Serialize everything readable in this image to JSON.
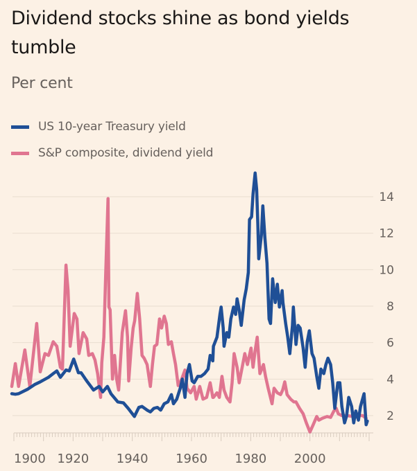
{
  "chart_data": {
    "type": "line",
    "title": "Dividend stocks shine as bond yields tumble",
    "subtitle": "Per cent",
    "xlabel": "",
    "ylabel": "Per cent",
    "xlim": [
      1900,
      2020
    ],
    "ylim": [
      1,
      16
    ],
    "y_ticks": [
      2,
      4,
      6,
      8,
      10,
      12,
      14
    ],
    "y_tick_labels": [
      "2",
      "4",
      "6",
      "8",
      "10",
      "12",
      "14"
    ],
    "x_ticks": [
      1900,
      1920,
      1940,
      1960,
      1980,
      2000
    ],
    "x_tick_labels": [
      "1900",
      "1920",
      "1940",
      "1960",
      "1980",
      "2000"
    ],
    "grid": true,
    "y_axis_side": "right",
    "legend_position": "top-left",
    "series": [
      {
        "name": "US 10-year Treasury yield",
        "color": "#1f4f96",
        "x": [
          1899.3,
          1900.5,
          1901.6,
          1904.7,
          1907,
          1908.9,
          1911.7,
          1913.3,
          1914.5,
          1915.7,
          1917.6,
          1918.7,
          1920.2,
          1921.8,
          1922.7,
          1924.6,
          1926.9,
          1928.8,
          1930,
          1931.6,
          1932.8,
          1935.1,
          1937,
          1938.6,
          1940.7,
          1942.2,
          1943.3,
          1945,
          1946.1,
          1947.3,
          1948.5,
          1949.6,
          1950.8,
          1952,
          1953.2,
          1953.9,
          1955,
          1956.2,
          1956.9,
          1957.8,
          1958.5,
          1959.3,
          1960.2,
          1960.9,
          1962.1,
          1963.2,
          1964.4,
          1965.6,
          1966.3,
          1967.2,
          1967.4,
          1968.6,
          1969.6,
          1970,
          1970.7,
          1971,
          1971.9,
          1972.6,
          1973.3,
          1974.2,
          1974.9,
          1975.4,
          1976.1,
          1976.8,
          1977.8,
          1978.5,
          1979.2,
          1979.6,
          1980.3,
          1980.8,
          1981.5,
          1982,
          1982.4,
          1982.7,
          1983.6,
          1984.1,
          1984.8,
          1985.5,
          1986.2,
          1986.7,
          1987.4,
          1988.3,
          1989,
          1989.7,
          1990.6,
          1990.9,
          1991.8,
          1992.5,
          1993.2,
          1994.1,
          1994.4,
          1995.3,
          1996,
          1996.7,
          1997.7,
          1998.4,
          1999.1,
          1999.8,
          2000.7,
          2001.4,
          2002.3,
          2003,
          2003.7,
          2004.7,
          2005.4,
          2006.1,
          2007,
          2007.7,
          2008.4,
          2009.4,
          2010.1,
          2010.8,
          2011.7,
          2012.4,
          2013.1,
          2014.1,
          2014.8,
          2015.5,
          2016.4,
          2017.1,
          2018.3,
          2019,
          2019.4
        ],
        "values": [
          3.2,
          3.17,
          3.2,
          3.45,
          3.7,
          3.85,
          4.1,
          4.3,
          4.45,
          4.1,
          4.5,
          4.45,
          5.1,
          4.35,
          4.35,
          3.9,
          3.4,
          3.6,
          3.3,
          3.6,
          3.2,
          2.75,
          2.7,
          2.4,
          1.95,
          2.45,
          2.5,
          2.3,
          2.2,
          2.4,
          2.45,
          2.3,
          2.65,
          2.75,
          3.15,
          2.65,
          2.9,
          3.5,
          4.0,
          3.0,
          4.3,
          4.8,
          3.9,
          3.8,
          4.15,
          4.15,
          4.3,
          4.55,
          5.3,
          5.0,
          5.8,
          6.3,
          7.55,
          7.95,
          6.8,
          5.8,
          6.55,
          6.3,
          7.3,
          7.95,
          7.55,
          8.4,
          7.8,
          6.95,
          8.35,
          8.95,
          9.85,
          12.75,
          12.9,
          14.15,
          15.3,
          14.4,
          12.5,
          10.6,
          11.9,
          13.5,
          11.75,
          10.35,
          7.3,
          7.05,
          9.5,
          8.2,
          9.2,
          7.95,
          8.85,
          8.2,
          7.05,
          6.3,
          5.4,
          6.95,
          7.95,
          5.9,
          6.95,
          6.8,
          5.7,
          4.65,
          6.05,
          6.65,
          5.4,
          5.15,
          4.15,
          3.5,
          4.55,
          4.3,
          4.8,
          5.15,
          4.8,
          3.8,
          2.4,
          3.8,
          3.8,
          2.5,
          1.6,
          2.0,
          3.0,
          2.5,
          1.6,
          2.25,
          1.75,
          2.5,
          3.2,
          1.5,
          1.7
        ]
      },
      {
        "name": "S&P composite, dividend yield",
        "color": "#e07590",
        "x": [
          1899.3,
          1900.5,
          1901.6,
          1903.7,
          1905.4,
          1907.7,
          1908.9,
          1910.5,
          1911.7,
          1913.3,
          1914.5,
          1915.7,
          1916.4,
          1917.6,
          1918.3,
          1919,
          1920.4,
          1921.3,
          1922,
          1923.4,
          1924.6,
          1925.3,
          1926.5,
          1927.4,
          1928.3,
          1929.3,
          1929.7,
          1930.4,
          1931,
          1931.8,
          1932.1,
          1932.5,
          1933.3,
          1934,
          1934.7,
          1935.4,
          1936.6,
          1937.7,
          1938.4,
          1938.8,
          1939.6,
          1940.3,
          1940.8,
          1941.7,
          1942.5,
          1943.3,
          1944,
          1945,
          1946.1,
          1946.8,
          1947.5,
          1948.3,
          1949.2,
          1949.9,
          1950.8,
          1951.5,
          1952.2,
          1953.2,
          1953.9,
          1954.6,
          1955.5,
          1956.7,
          1957.8,
          1958.5,
          1959.7,
          1960.9,
          1961.6,
          1962.8,
          1963.9,
          1965.1,
          1966.3,
          1967.2,
          1967.4,
          1968.6,
          1969.4,
          1970.3,
          1971,
          1971.9,
          1973,
          1973.7,
          1974.4,
          1975.4,
          1976.1,
          1977.3,
          1978,
          1978.9,
          1980.1,
          1980.8,
          1981.5,
          1982.2,
          1983.1,
          1984.3,
          1985,
          1985.9,
          1987.2,
          1987.9,
          1989,
          1990.1,
          1990.8,
          1991.5,
          1992.3,
          1993.5,
          1994.6,
          1995.3,
          1996.5,
          1997.7,
          1998.8,
          2000,
          2001.1,
          2002.3,
          2003,
          2004.2,
          2005.8,
          2007,
          2008.1,
          2008.9,
          2009.6,
          2010.8,
          2012.4,
          2014.8,
          2016.4,
          2017.8,
          2019
        ],
        "values": [
          3.6,
          4.85,
          3.6,
          5.6,
          3.6,
          7.05,
          4.4,
          5.4,
          5.3,
          6.05,
          5.8,
          4.65,
          4.55,
          10.25,
          8.85,
          5.8,
          7.6,
          7.3,
          5.4,
          6.55,
          6.2,
          5.3,
          5.4,
          5.05,
          4.3,
          3.0,
          4.9,
          6.3,
          9.7,
          13.9,
          7.95,
          7.8,
          4.0,
          5.3,
          4.0,
          3.4,
          6.55,
          7.75,
          6.3,
          3.9,
          5.7,
          6.8,
          7.2,
          8.7,
          7.3,
          5.3,
          5.15,
          4.8,
          3.6,
          4.8,
          5.8,
          5.9,
          7.3,
          6.8,
          7.45,
          7.05,
          5.9,
          6.05,
          5.4,
          4.8,
          3.65,
          4.0,
          4.5,
          3.5,
          3.25,
          3.6,
          2.9,
          3.6,
          2.9,
          3.0,
          3.8,
          3.0,
          3.0,
          3.25,
          3.0,
          4.15,
          3.4,
          3.0,
          2.75,
          3.8,
          5.4,
          4.65,
          3.8,
          4.8,
          5.4,
          4.8,
          5.7,
          4.65,
          5.55,
          6.3,
          4.3,
          4.8,
          4.15,
          3.5,
          2.65,
          3.5,
          3.25,
          3.15,
          3.4,
          3.85,
          3.15,
          2.9,
          2.75,
          2.75,
          2.4,
          2.1,
          1.6,
          1.1,
          1.5,
          1.95,
          1.75,
          1.85,
          1.95,
          1.9,
          2.25,
          2.4,
          2.1,
          2.0,
          2.0,
          1.95,
          2.0,
          2.0,
          1.85
        ]
      }
    ]
  }
}
